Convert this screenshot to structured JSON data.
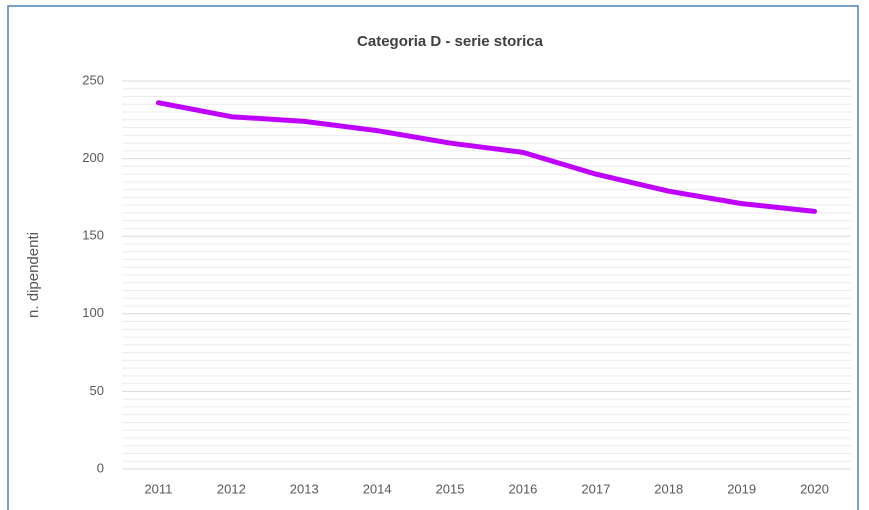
{
  "chart_data": {
    "type": "line",
    "title": "Categoria D - serie storica",
    "y_label": "n. dipendenti",
    "categories": [
      "2011",
      "2012",
      "2013",
      "2014",
      "2015",
      "2016",
      "2017",
      "2018",
      "2019",
      "2020"
    ],
    "series": [
      {
        "name": "Categoria D",
        "color": "#c000ff",
        "values": [
          236,
          227,
          224,
          218,
          210,
          204,
          190,
          179,
          171,
          166
        ]
      }
    ],
    "ylim": [
      0,
      250
    ],
    "yticks": [
      0,
      50,
      100,
      150,
      200,
      250
    ],
    "grid": true,
    "minor_grid": true,
    "legend": false
  }
}
